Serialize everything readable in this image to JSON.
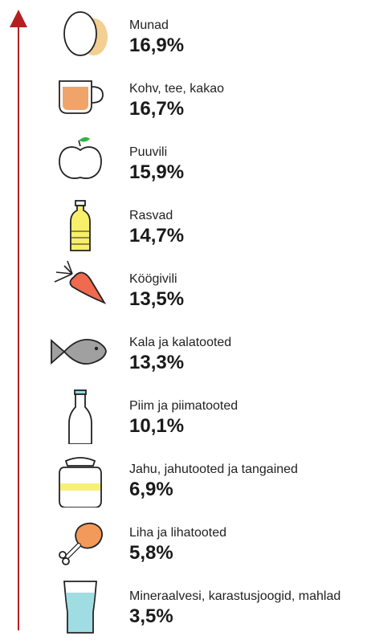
{
  "chart_data": {
    "type": "bar",
    "categories": [
      "Munad",
      "Kohv, tee, kakao",
      "Puuvili",
      "Rasvad",
      "Köögivili",
      "Kala ja kalatooted",
      "Piim ja piimatooted",
      "Jahu, jahutooted ja tangained",
      "Liha ja lihatooted",
      "Mineraalvesi, karastusjoogid, mahlad"
    ],
    "values": [
      16.9,
      16.7,
      15.9,
      14.7,
      13.5,
      13.3,
      10.1,
      6.9,
      5.8,
      3.5
    ],
    "value_labels": [
      "16,9%",
      "16,7%",
      "15,9%",
      "14,7%",
      "13,5%",
      "13,3%",
      "10,1%",
      "6,9%",
      "5,8%",
      "3,5%"
    ],
    "icons": [
      "egg-icon",
      "cup-icon",
      "apple-icon",
      "oil-bottle-icon",
      "carrot-icon",
      "fish-icon",
      "milk-bottle-icon",
      "flour-sack-icon",
      "chicken-leg-icon",
      "glass-icon"
    ],
    "arrow_color": "#b51f1f"
  }
}
